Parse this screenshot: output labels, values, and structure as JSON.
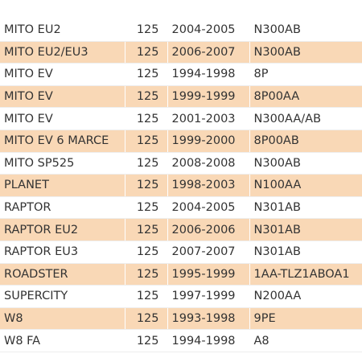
{
  "table": {
    "rows": [
      [
        "MITO EU2",
        "125",
        "2004-2005",
        "N300AB"
      ],
      [
        "MITO EU2/EU3",
        "125",
        "2006-2007",
        "N300AB"
      ],
      [
        "MITO EV",
        "125",
        "1994-1998",
        "8P"
      ],
      [
        "MITO EV",
        "125",
        "1999-1999",
        "8P00AA"
      ],
      [
        "MITO EV",
        "125",
        "2001-2003",
        "N300AA/AB"
      ],
      [
        "MITO EV 6 MARCE",
        "125",
        "1999-2000",
        "8P00AB"
      ],
      [
        "MITO SP525",
        "125",
        "2008-2008",
        "N300AB"
      ],
      [
        "PLANET",
        "125",
        "1998-2003",
        "N100AA"
      ],
      [
        "RAPTOR",
        "125",
        "2004-2005",
        "N301AB"
      ],
      [
        "RAPTOR EU2",
        "125",
        "2006-2006",
        "N301AB"
      ],
      [
        "RAPTOR EU3",
        "125",
        "2007-2007",
        "N301AB"
      ],
      [
        "ROADSTER",
        "125",
        "1995-1999",
        "1AA-TLZ1ABOA1"
      ],
      [
        "SUPERCITY",
        "125",
        "1997-1999",
        "N200AA"
      ],
      [
        "W8",
        "125",
        "1993-1998",
        "9PE"
      ],
      [
        "W8 FA",
        "125",
        "1994-1998",
        "A8"
      ]
    ]
  }
}
